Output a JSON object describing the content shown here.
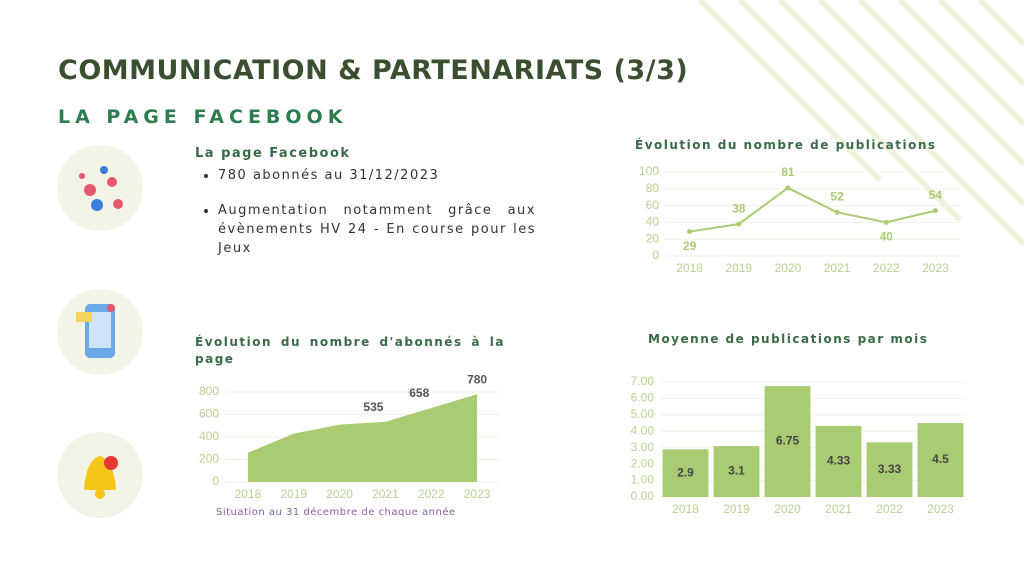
{
  "header": {
    "title": "COMMUNICATION & PARTENARIATS (3/3)",
    "subtitle": "LA PAGE FACEBOOK"
  },
  "text_block": {
    "heading": "La page Facebook",
    "bullets": [
      "780 abonnés au 31/12/2023",
      "Augmentation notamment grâce aux évènements HV 24 - En course pour les Jeux"
    ]
  },
  "chart_data": [
    {
      "type": "line",
      "title": "Évolution du nombre de publications",
      "categories": [
        "2018",
        "2019",
        "2020",
        "2021",
        "2022",
        "2023"
      ],
      "values": [
        29,
        38,
        81,
        52,
        40,
        54
      ],
      "color": "#a9cc72",
      "ylim": [
        0,
        100
      ],
      "yticks": [
        0,
        20,
        40,
        60,
        80,
        100
      ],
      "grid": true
    },
    {
      "type": "area",
      "title": "Évolution du nombre d'abonnés à la page",
      "note": "Situation au 31 décembre de chaque année",
      "categories": [
        "2018",
        "2019",
        "2020",
        "2021",
        "2022",
        "2023"
      ],
      "values": [
        260,
        430,
        510,
        535,
        658,
        780
      ],
      "value_labels": [
        null,
        null,
        null,
        "535",
        "658",
        "780"
      ],
      "color": "#a9cc72",
      "ylim": [
        0,
        800
      ],
      "yticks": [
        0,
        200,
        400,
        600,
        800
      ],
      "grid": true
    },
    {
      "type": "bar",
      "title": "Moyenne de publications par mois",
      "categories": [
        "2018",
        "2019",
        "2020",
        "2021",
        "2022",
        "2023"
      ],
      "values": [
        2.9,
        3.1,
        6.75,
        4.33,
        3.33,
        4.5
      ],
      "color": "#a9cc72",
      "ylim": [
        0,
        7
      ],
      "yticks": [
        {
          "value": 0,
          "label": "0.00"
        },
        {
          "value": 1,
          "label": "1.00"
        },
        {
          "value": 2,
          "label": "2.00"
        },
        {
          "value": 3,
          "label": "3.00"
        },
        {
          "value": 4,
          "label": "4.00"
        },
        {
          "value": 5,
          "label": "5.00"
        },
        {
          "value": 6,
          "label": "6.00"
        },
        {
          "value": 7,
          "label": "7.00"
        }
      ],
      "grid": true
    }
  ]
}
